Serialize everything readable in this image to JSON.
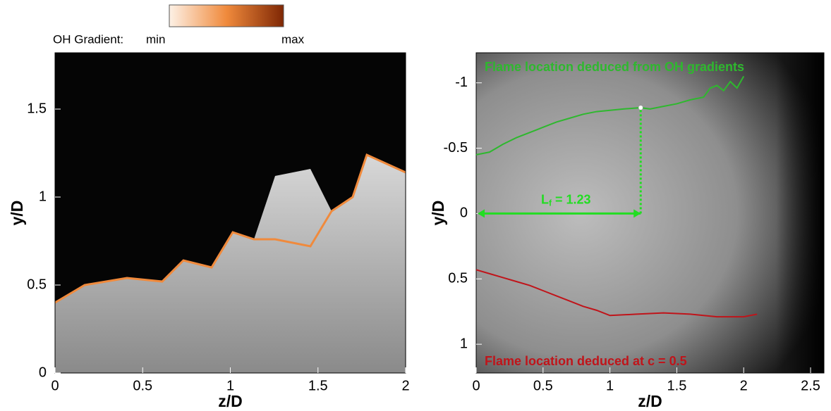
{
  "chart_data": [
    {
      "type": "image",
      "xlabel": "z/D",
      "ylabel": "y/D",
      "xlim": [
        0,
        2
      ],
      "xticks": [
        0,
        0.5,
        1,
        1.5,
        2
      ],
      "ylim": [
        0,
        1.82
      ],
      "yticks": [
        0,
        0.5,
        1,
        1.5
      ],
      "colorbar_label": "OH Gradient:",
      "colorbar_min": "min",
      "colorbar_max": "max",
      "colorbar_colors": [
        "#fdf1e6",
        "#f08a3c",
        "#7f2704"
      ]
    },
    {
      "type": "line",
      "xlabel": "z/D",
      "ylabel": "y/D",
      "xlim": [
        0,
        2.6
      ],
      "xticks": [
        0,
        0.5,
        1,
        1.5,
        2,
        2.5
      ],
      "ylim": [
        1.22,
        -1.23
      ],
      "yticks": [
        1,
        0.5,
        0,
        -0.5,
        -1
      ],
      "series": [
        {
          "name": "Flame location deduced from OH gradients",
          "color": "#2eb82e",
          "x": [
            0,
            0.1,
            0.2,
            0.3,
            0.4,
            0.5,
            0.6,
            0.7,
            0.8,
            0.9,
            1.0,
            1.1,
            1.23,
            1.3,
            1.4,
            1.5,
            1.6,
            1.7,
            1.75,
            1.8,
            1.85,
            1.9,
            1.95,
            2.0
          ],
          "values": [
            -0.45,
            -0.47,
            -0.53,
            -0.58,
            -0.62,
            -0.66,
            -0.7,
            -0.73,
            -0.76,
            -0.78,
            -0.79,
            -0.8,
            -0.81,
            -0.8,
            -0.82,
            -0.84,
            -0.87,
            -0.89,
            -0.96,
            -0.98,
            -0.94,
            -1.01,
            -0.96,
            -1.05
          ]
        },
        {
          "name": "Flame location deduced at c = 0.5",
          "color": "#c0141a",
          "x": [
            0,
            0.1,
            0.2,
            0.3,
            0.4,
            0.5,
            0.6,
            0.7,
            0.8,
            0.9,
            1.0,
            1.2,
            1.4,
            1.6,
            1.8,
            2.0,
            2.1
          ],
          "values": [
            0.43,
            0.46,
            0.49,
            0.52,
            0.55,
            0.59,
            0.63,
            0.67,
            0.71,
            0.74,
            0.78,
            0.77,
            0.76,
            0.77,
            0.79,
            0.79,
            0.77
          ]
        }
      ],
      "flame_length": {
        "symbol": "L",
        "subscript": "f",
        "label": "= 1.23",
        "value": 1.23
      },
      "flame_length_color": "#22dd22"
    }
  ]
}
